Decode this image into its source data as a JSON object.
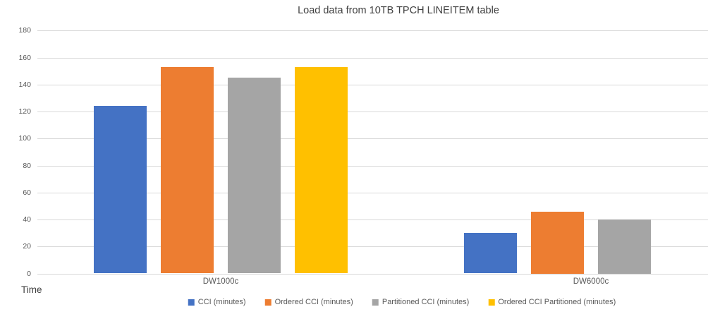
{
  "chart_data": {
    "type": "bar",
    "title": "Load data from 10TB TPCH LINEITEM table",
    "categories": [
      "DW1000c",
      "DW6000c"
    ],
    "series": [
      {
        "name": "CCI (minutes)",
        "color": "#4472C4",
        "values": [
          124,
          30
        ]
      },
      {
        "name": "Ordered CCI (minutes)",
        "color": "#ED7D31",
        "values": [
          153,
          46
        ]
      },
      {
        "name": "Partitioned CCI (minutes)",
        "color": "#A5A5A5",
        "values": [
          145,
          40
        ]
      },
      {
        "name": "Ordered CCI Partitioned (minutes)",
        "color": "#FFC000",
        "values": [
          153,
          null
        ]
      }
    ],
    "xlabel": "",
    "ylabel": "Time",
    "ylim": [
      0,
      180
    ],
    "ytick_step": 20,
    "grid": true,
    "gridline_color": "#d9d9d9",
    "legend_position": "bottom"
  }
}
